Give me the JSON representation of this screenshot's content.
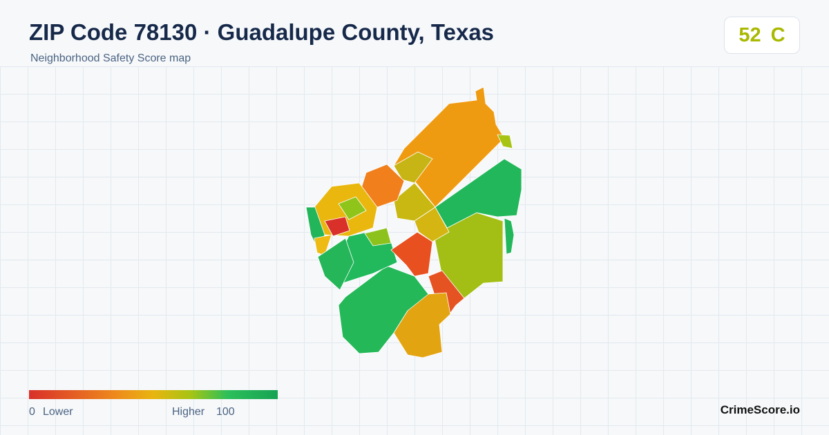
{
  "header": {
    "title": "ZIP Code 78130 · Guadalupe County, Texas",
    "subtitle": "Neighborhood Safety Score map"
  },
  "score": {
    "value": 52,
    "grade": "C"
  },
  "legend": {
    "min": 0,
    "min_label": "Lower",
    "max_label": "Higher",
    "max": 100
  },
  "brand": "CrimeScore.io"
}
